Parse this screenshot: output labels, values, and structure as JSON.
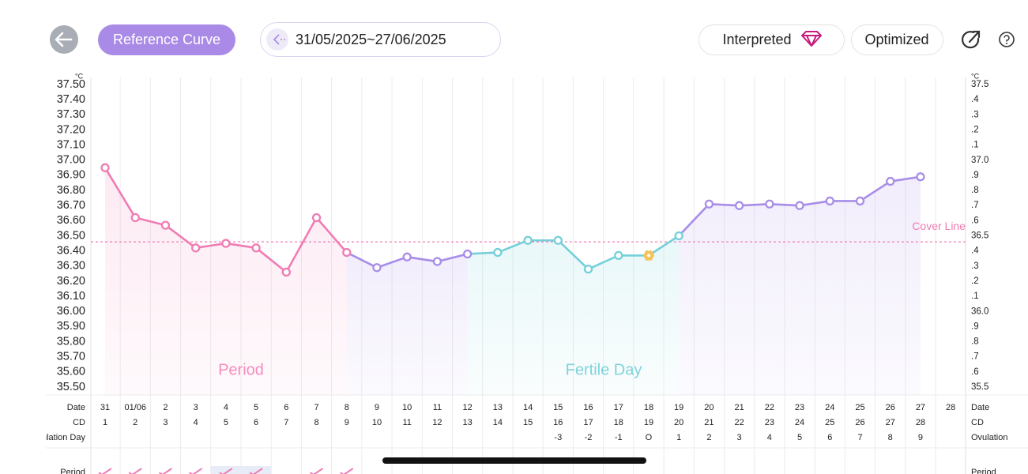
{
  "toolbar": {
    "reference_curve": "Reference Curve",
    "date_range": "31/05/2025~27/06/2025",
    "interpreted": "Interpreted",
    "optimized": "Optimized"
  },
  "chart_data": {
    "type": "line",
    "y_unit": "°C",
    "categories": [
      "31",
      "01/06",
      "2",
      "3",
      "4",
      "5",
      "6",
      "7",
      "8",
      "9",
      "10",
      "11",
      "12",
      "13",
      "14",
      "15",
      "16",
      "17",
      "18",
      "19",
      "20",
      "21",
      "22",
      "23",
      "24",
      "25",
      "26",
      "27",
      "28"
    ],
    "values": [
      36.95,
      36.62,
      36.57,
      36.42,
      36.45,
      36.42,
      36.26,
      36.62,
      36.39,
      36.29,
      36.36,
      36.33,
      36.38,
      36.39,
      36.47,
      36.47,
      36.28,
      36.37,
      36.37,
      36.5,
      36.71,
      36.7,
      36.71,
      36.7,
      36.73,
      36.73,
      36.86,
      36.89,
      null
    ],
    "point_colors": [
      "#f07cb4",
      "#f07cb4",
      "#f07cb4",
      "#f07cb4",
      "#f07cb4",
      "#f07cb4",
      "#f07cb4",
      "#f07cb4",
      "#f07cb4",
      "#a88de8",
      "#a88de8",
      "#a88de8",
      "#a88de8",
      "#74d0d8",
      "#74d0d8",
      "#74d0d8",
      "#74d0d8",
      "#74d0d8",
      "#f7c25a",
      "#74d0d8",
      "#a88de8",
      "#a88de8",
      "#a88de8",
      "#a88de8",
      "#a88de8",
      "#a88de8",
      "#a88de8",
      "#a88de8",
      null
    ],
    "ylim": [
      35.5,
      37.5
    ],
    "yticks": [
      {
        "value": 37.5,
        "label": "37.50"
      },
      {
        "value": 37.4,
        "label": "37.40"
      },
      {
        "value": 37.3,
        "label": "37.30"
      },
      {
        "value": 37.2,
        "label": "37.20"
      },
      {
        "value": 37.1,
        "label": "37.10"
      },
      {
        "value": 37.0,
        "label": "37.00"
      },
      {
        "value": 36.9,
        "label": "36.90"
      },
      {
        "value": 36.8,
        "label": "36.80"
      },
      {
        "value": 36.7,
        "label": "36.70"
      },
      {
        "value": 36.6,
        "label": "36.60"
      },
      {
        "value": 36.5,
        "label": "36.50"
      },
      {
        "value": 36.4,
        "label": "36.40"
      },
      {
        "value": 36.3,
        "label": "36.30"
      },
      {
        "value": 36.2,
        "label": "36.20"
      },
      {
        "value": 36.1,
        "label": "36.10"
      },
      {
        "value": 36.0,
        "label": "36.00"
      },
      {
        "value": 35.9,
        "label": "35.90"
      },
      {
        "value": 35.8,
        "label": "35.80"
      },
      {
        "value": 35.7,
        "label": "35.70"
      },
      {
        "value": 35.6,
        "label": "35.60"
      },
      {
        "value": 35.5,
        "label": "35.50"
      }
    ],
    "y2lim": [
      35.5,
      37.5
    ],
    "y2ticks": [
      37.5,
      {
        "value": 37.4,
        "label": ".4"
      },
      {
        "value": 37.3,
        "label": ".3"
      },
      {
        "value": 37.2,
        "label": ".2"
      },
      {
        "value": 37.1,
        "label": ".1"
      },
      {
        "value": 37.0,
        "label": "37.0"
      },
      {
        "value": 36.9,
        "label": ".9"
      },
      {
        "value": 36.8,
        "label": ".8"
      },
      {
        "value": 36.7,
        "label": ".7"
      },
      {
        "value": 36.6,
        "label": ".6"
      },
      36.5,
      {
        "value": 36.4,
        "label": ".4"
      },
      {
        "value": 36.3,
        "label": ".3"
      },
      {
        "value": 36.2,
        "label": ".2"
      },
      {
        "value": 36.1,
        "label": ".1"
      },
      {
        "value": 36.0,
        "label": "36.0"
      },
      {
        "value": 35.9,
        "label": ".9"
      },
      {
        "value": 35.8,
        "label": ".8"
      },
      {
        "value": 35.7,
        "label": ".7"
      },
      {
        "value": 35.6,
        "label": ".6"
      },
      35.5
    ],
    "grid": true,
    "cover_line": {
      "value": 36.46,
      "label": "Cover Line",
      "color": "#f07cb4"
    },
    "annotations": [
      {
        "text": "Period",
        "color": "#f28dc0"
      },
      {
        "text": "Fertile Day",
        "color": "#7fd3d9"
      }
    ],
    "rows": {
      "date": {
        "label": "Date",
        "right_label": "Date"
      },
      "cd": {
        "label": "CD",
        "right_label": "CD",
        "values": [
          1,
          2,
          3,
          4,
          5,
          6,
          7,
          8,
          9,
          10,
          11,
          12,
          13,
          14,
          15,
          16,
          17,
          18,
          19,
          20,
          21,
          22,
          23,
          24,
          25,
          26,
          27,
          28,
          null
        ]
      },
      "ovulation_day": {
        "label": "Ovulation Day",
        "right_label": "Ovulation",
        "values": [
          null,
          null,
          null,
          null,
          null,
          null,
          null,
          null,
          null,
          null,
          null,
          null,
          null,
          null,
          null,
          "-3",
          "-2",
          "-1",
          "O",
          "1",
          "2",
          "3",
          "4",
          "5",
          "6",
          "7",
          "8",
          "9",
          null
        ]
      },
      "period": {
        "label": "Period",
        "right_label": "Period",
        "checks": [
          true,
          true,
          true,
          true,
          true,
          true,
          false,
          true,
          true,
          false,
          false,
          false,
          false,
          false,
          false,
          false,
          false,
          false,
          false,
          false,
          false,
          false,
          false,
          false,
          false,
          false,
          false,
          false,
          false
        ]
      }
    }
  }
}
